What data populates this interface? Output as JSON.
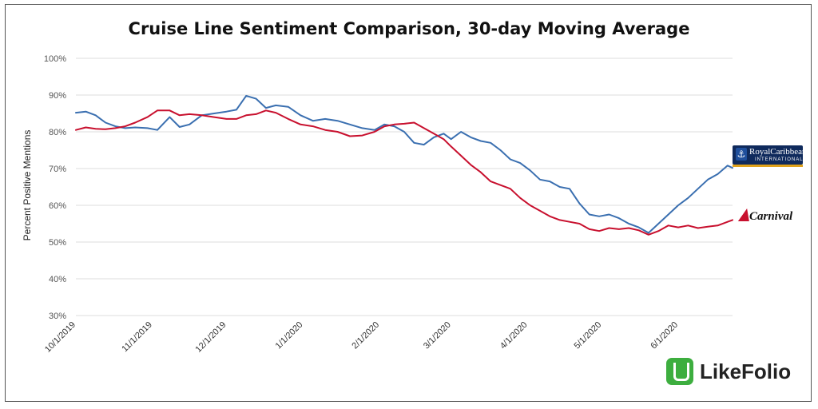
{
  "chart_data": {
    "type": "line",
    "title": "Cruise Line Sentiment Comparison, 30-day Moving Average",
    "ylabel": "Percent Positive Mentions",
    "xlabel": "",
    "ylim": [
      30,
      100
    ],
    "y_ticks": [
      "30%",
      "40%",
      "50%",
      "60%",
      "70%",
      "80%",
      "90%",
      "100%"
    ],
    "x_ticks": [
      "10/1/2019",
      "11/1/2019",
      "12/1/2019",
      "1/1/2020",
      "2/1/2020",
      "3/1/2020",
      "4/1/2020",
      "5/1/2020",
      "6/1/2020"
    ],
    "x_range": [
      "10/1/2019",
      "6/23/2020"
    ],
    "grid": true,
    "series": [
      {
        "name": "Royal Caribbean",
        "color": "#3a6fb0",
        "points": [
          [
            "10/1/2019",
            85.2
          ],
          [
            "10/5/2019",
            85.5
          ],
          [
            "10/9/2019",
            84.5
          ],
          [
            "10/13/2019",
            82.5
          ],
          [
            "10/17/2019",
            81.5
          ],
          [
            "10/21/2019",
            81.0
          ],
          [
            "10/25/2019",
            81.2
          ],
          [
            "10/30/2019",
            81.0
          ],
          [
            "11/3/2019",
            80.5
          ],
          [
            "11/8/2019",
            84.0
          ],
          [
            "11/12/2019",
            81.3
          ],
          [
            "11/16/2019",
            82.0
          ],
          [
            "11/21/2019",
            84.5
          ],
          [
            "11/26/2019",
            85.0
          ],
          [
            "12/1/2019",
            85.5
          ],
          [
            "12/5/2019",
            86.0
          ],
          [
            "12/9/2019",
            89.8
          ],
          [
            "12/13/2019",
            89.0
          ],
          [
            "12/17/2019",
            86.5
          ],
          [
            "12/21/2019",
            87.2
          ],
          [
            "12/26/2019",
            86.8
          ],
          [
            "12/31/2019",
            84.5
          ],
          [
            "1/5/2020",
            83.0
          ],
          [
            "1/10/2020",
            83.5
          ],
          [
            "1/15/2020",
            83.0
          ],
          [
            "1/20/2020",
            82.0
          ],
          [
            "1/25/2020",
            81.0
          ],
          [
            "1/30/2020",
            80.5
          ],
          [
            "2/3/2020",
            82.0
          ],
          [
            "2/7/2020",
            81.5
          ],
          [
            "2/11/2020",
            80.0
          ],
          [
            "2/15/2020",
            77.0
          ],
          [
            "2/19/2020",
            76.5
          ],
          [
            "2/23/2020",
            78.5
          ],
          [
            "2/27/2020",
            79.5
          ],
          [
            "3/1/2020",
            78.0
          ],
          [
            "3/5/2020",
            80.0
          ],
          [
            "3/9/2020",
            78.5
          ],
          [
            "3/13/2020",
            77.5
          ],
          [
            "3/17/2020",
            77.0
          ],
          [
            "3/21/2020",
            75.0
          ],
          [
            "3/25/2020",
            72.5
          ],
          [
            "3/29/2020",
            71.5
          ],
          [
            "4/2/2020",
            69.5
          ],
          [
            "4/6/2020",
            67.0
          ],
          [
            "4/10/2020",
            66.5
          ],
          [
            "4/14/2020",
            65.0
          ],
          [
            "4/18/2020",
            64.5
          ],
          [
            "4/22/2020",
            60.5
          ],
          [
            "4/26/2020",
            57.5
          ],
          [
            "4/30/2020",
            57.0
          ],
          [
            "5/4/2020",
            57.5
          ],
          [
            "5/8/2020",
            56.5
          ],
          [
            "5/12/2020",
            55.0
          ],
          [
            "5/16/2020",
            54.0
          ],
          [
            "5/20/2020",
            52.5
          ],
          [
            "5/24/2020",
            55.0
          ],
          [
            "5/28/2020",
            57.5
          ],
          [
            "6/1/2020",
            60.0
          ],
          [
            "6/5/2020",
            62.0
          ],
          [
            "6/9/2020",
            64.5
          ],
          [
            "6/13/2020",
            67.0
          ],
          [
            "6/17/2020",
            68.5
          ],
          [
            "6/21/2020",
            70.8
          ],
          [
            "6/23/2020",
            70.2
          ]
        ]
      },
      {
        "name": "Carnival",
        "color": "#c8102e",
        "points": [
          [
            "10/1/2019",
            80.5
          ],
          [
            "10/5/2019",
            81.2
          ],
          [
            "10/9/2019",
            80.8
          ],
          [
            "10/13/2019",
            80.7
          ],
          [
            "10/17/2019",
            81.0
          ],
          [
            "10/21/2019",
            81.5
          ],
          [
            "10/25/2019",
            82.5
          ],
          [
            "10/30/2019",
            84.0
          ],
          [
            "11/3/2019",
            85.8
          ],
          [
            "11/8/2019",
            85.8
          ],
          [
            "11/12/2019",
            84.5
          ],
          [
            "11/16/2019",
            84.8
          ],
          [
            "11/21/2019",
            84.5
          ],
          [
            "11/26/2019",
            84.0
          ],
          [
            "12/1/2019",
            83.5
          ],
          [
            "12/5/2019",
            83.5
          ],
          [
            "12/9/2019",
            84.5
          ],
          [
            "12/13/2019",
            84.8
          ],
          [
            "12/17/2019",
            85.8
          ],
          [
            "12/21/2019",
            85.2
          ],
          [
            "12/26/2019",
            83.5
          ],
          [
            "12/31/2019",
            82.0
          ],
          [
            "1/5/2020",
            81.5
          ],
          [
            "1/10/2020",
            80.5
          ],
          [
            "1/15/2020",
            80.0
          ],
          [
            "1/20/2020",
            78.8
          ],
          [
            "1/25/2020",
            79.0
          ],
          [
            "1/30/2020",
            80.0
          ],
          [
            "2/3/2020",
            81.5
          ],
          [
            "2/7/2020",
            82.0
          ],
          [
            "2/11/2020",
            82.2
          ],
          [
            "2/15/2020",
            82.5
          ],
          [
            "2/19/2020",
            81.0
          ],
          [
            "2/23/2020",
            79.5
          ],
          [
            "2/27/2020",
            78.0
          ],
          [
            "3/1/2020",
            76.0
          ],
          [
            "3/5/2020",
            73.5
          ],
          [
            "3/9/2020",
            71.0
          ],
          [
            "3/13/2020",
            69.0
          ],
          [
            "3/17/2020",
            66.5
          ],
          [
            "3/21/2020",
            65.5
          ],
          [
            "3/25/2020",
            64.5
          ],
          [
            "3/29/2020",
            62.0
          ],
          [
            "4/2/2020",
            60.0
          ],
          [
            "4/6/2020",
            58.5
          ],
          [
            "4/10/2020",
            57.0
          ],
          [
            "4/14/2020",
            56.0
          ],
          [
            "4/18/2020",
            55.5
          ],
          [
            "4/22/2020",
            55.0
          ],
          [
            "4/26/2020",
            53.5
          ],
          [
            "4/30/2020",
            53.0
          ],
          [
            "5/4/2020",
            53.8
          ],
          [
            "5/8/2020",
            53.5
          ],
          [
            "5/12/2020",
            53.8
          ],
          [
            "5/16/2020",
            53.2
          ],
          [
            "5/20/2020",
            52.0
          ],
          [
            "5/24/2020",
            53.0
          ],
          [
            "5/28/2020",
            54.5
          ],
          [
            "6/1/2020",
            54.0
          ],
          [
            "6/5/2020",
            54.5
          ],
          [
            "6/9/2020",
            53.8
          ],
          [
            "6/13/2020",
            54.2
          ],
          [
            "6/17/2020",
            54.5
          ],
          [
            "6/21/2020",
            55.5
          ],
          [
            "6/23/2020",
            56.0
          ]
        ]
      }
    ]
  },
  "logos": {
    "royal_caribbean": {
      "name": "RoyalCaribbean",
      "sub": "INTERNATIONAL"
    },
    "carnival": {
      "name": "Carnival"
    },
    "likefolio": {
      "name": "LikeFolio"
    }
  },
  "colors": {
    "grid": "#dddddd",
    "royal_blue": "#0f2a5c",
    "accent_gold": "#e0a21b",
    "likefolio_green": "#3dae3f"
  },
  "icons": {
    "royal_caribbean": "crown-anchor-icon",
    "carnival": "funnel-icon",
    "likefolio": "likefolio-mark-icon"
  }
}
